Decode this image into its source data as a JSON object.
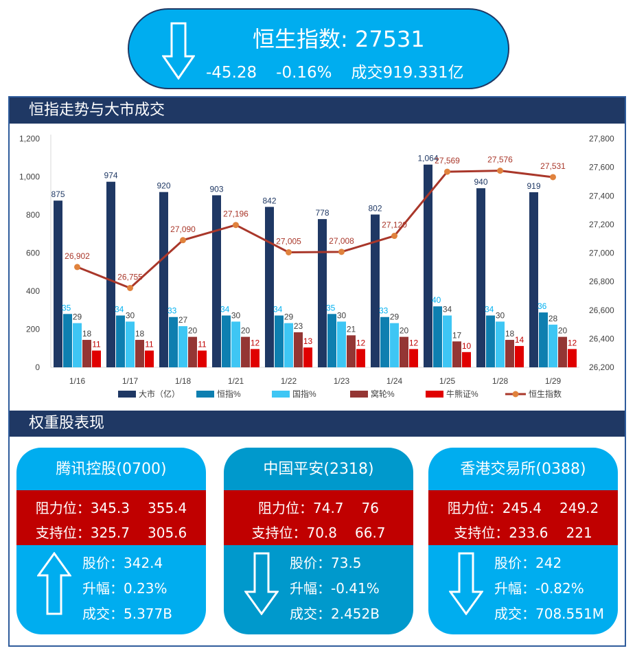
{
  "header": {
    "title": "恒生指数:  27531",
    "change": "-45.28",
    "change_pct": "-0.16%",
    "turnover": "成交919.331亿",
    "direction": "down"
  },
  "section_chart": {
    "title": "恒指走势与大市成交"
  },
  "section_stocks": {
    "title": "权重股表现"
  },
  "colors": {
    "header_bg": "#00adef",
    "navy": "#1f3864",
    "cyan": "#00b0f0",
    "card_mid": "#0099cc",
    "red": "#c00000",
    "hsi_line": "#a9372a",
    "hsi_marker": "#e0823d"
  },
  "chart_data": {
    "type": "bar",
    "categories": [
      "1/16",
      "1/17",
      "1/18",
      "1/21",
      "1/22",
      "1/23",
      "1/24",
      "1/25",
      "1/28",
      "1/29"
    ],
    "series": [
      {
        "name": "大市（亿）",
        "color": "#1f3864",
        "label_color": "#1f3864",
        "values": [
          875,
          974,
          920,
          903,
          842,
          778,
          802,
          1064,
          940,
          919
        ],
        "data_labels": [
          "875",
          "974",
          "920",
          "903",
          "842",
          "778",
          "802",
          "1,064",
          "940",
          "919"
        ]
      },
      {
        "name": "恒指%",
        "color": "#0e7fb0",
        "label_color": "#00b0f0",
        "values": [
          35,
          34,
          33,
          34,
          34,
          35,
          33,
          40,
          34,
          36
        ],
        "data_labels": [
          "35",
          "34",
          "33",
          "34",
          "34",
          "35",
          "33",
          "40",
          "34",
          "36"
        ]
      },
      {
        "name": "国指%",
        "color": "#3ec6f4",
        "label_color": "#404040",
        "values": [
          29,
          30,
          27,
          30,
          29,
          30,
          29,
          34,
          30,
          28
        ],
        "data_labels": [
          "29",
          "30",
          "27",
          "30",
          "29",
          "30",
          "29",
          "34",
          "30",
          "28"
        ]
      },
      {
        "name": "窝轮%",
        "color": "#943634",
        "label_color": "#404040",
        "values": [
          18,
          18,
          20,
          20,
          23,
          21,
          20,
          17,
          18,
          20
        ],
        "data_labels": [
          "18",
          "18",
          "20",
          "20",
          "23",
          "21",
          "20",
          "17",
          "18",
          "20"
        ]
      },
      {
        "name": "牛熊证%",
        "color": "#e00000",
        "label_color": "#c00000",
        "values": [
          11,
          11,
          11,
          12,
          13,
          12,
          12,
          10,
          14,
          12
        ],
        "data_labels": [
          "11",
          "11",
          "11",
          "12",
          "13",
          "12",
          "12",
          "10",
          "14",
          "12"
        ]
      }
    ],
    "line_series": {
      "name": "恒生指数",
      "color": "#a9372a",
      "marker_color": "#e0823d",
      "label_color": "#a9372a",
      "values": [
        26902,
        26755,
        27090,
        27196,
        27005,
        27008,
        27120,
        27569,
        27576,
        27531
      ],
      "data_labels": [
        "26,902",
        "26,755",
        "27,090",
        "27,196",
        "27,005",
        "27,008",
        "27,120",
        "27,569",
        "27,576",
        "27,531"
      ]
    },
    "y_left": {
      "min": 0,
      "max": 1200,
      "ticks": [
        "0",
        "200",
        "400",
        "600",
        "800",
        "1,000",
        "1,200"
      ]
    },
    "y_right": {
      "min": 26200,
      "max": 27800,
      "ticks": [
        "26,200",
        "26,400",
        "26,600",
        "26,800",
        "27,000",
        "27,200",
        "27,400",
        "27,600",
        "27,800"
      ]
    },
    "percent_bar_scale": "percent values drawn as value x 8 on the left axis",
    "legend_position": "bottom"
  },
  "stocks": [
    {
      "name": "腾讯控股(0700)",
      "resistance_label": "阻力位：",
      "resistance_1": "345.3",
      "resistance_2": "355.4",
      "support_label": "支持位：",
      "support_1": "325.7",
      "support_2": "305.6",
      "price": "股价：342.4",
      "change": "升幅：0.23%",
      "volume": "成交：5.377B",
      "direction": "up",
      "theme": "#00adef"
    },
    {
      "name": "中国平安(2318)",
      "resistance_label": "阻力位：",
      "resistance_1": "74.7",
      "resistance_2": "76",
      "support_label": "支持位：",
      "support_1": "70.8",
      "support_2": "66.7",
      "price": "股价：73.5",
      "change": "升幅：-0.41%",
      "volume": "成交：2.452B",
      "direction": "down",
      "theme": "#0099cc"
    },
    {
      "name": "香港交易所(0388)",
      "resistance_label": "阻力位：",
      "resistance_1": "245.4",
      "resistance_2": "249.2",
      "support_label": "支持位：",
      "support_1": "233.6",
      "support_2": "221",
      "price": "股价：242",
      "change": "升幅：-0.82%",
      "volume": "成交：708.551M",
      "direction": "down",
      "theme": "#00adef"
    }
  ]
}
